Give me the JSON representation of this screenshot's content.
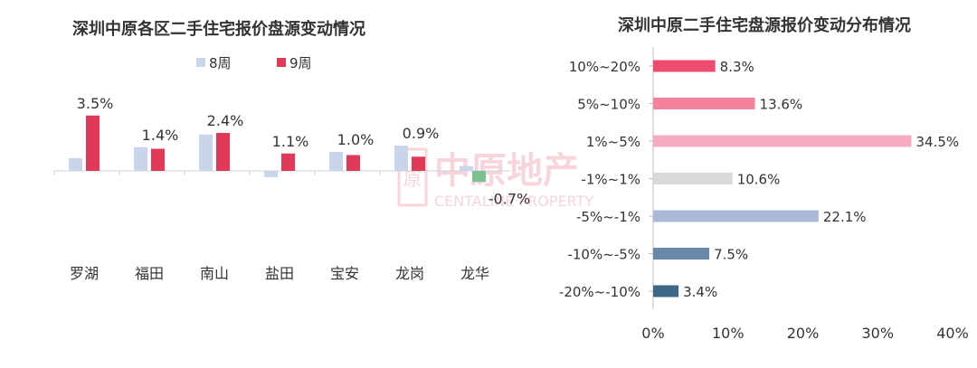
{
  "watermark": {
    "cn": "中原地产",
    "en": "CENTALINE PROPERTY",
    "seal": "原"
  },
  "chart_data": [
    {
      "type": "bar",
      "title": "深圳中原各区二手住宅报价盘源变动情况",
      "categories": [
        "罗湖",
        "福田",
        "南山",
        "盐田",
        "宝安",
        "龙岗",
        "龙华"
      ],
      "series": [
        {
          "name": "8周",
          "values": [
            0.8,
            1.5,
            2.3,
            -0.4,
            1.2,
            1.6,
            0.3
          ],
          "color": "#c9d5ea"
        },
        {
          "name": "9周",
          "values": [
            3.5,
            1.4,
            2.4,
            1.1,
            1.0,
            0.9,
            -0.7
          ],
          "color": "#e03a58"
        }
      ],
      "data_labels": [
        "3.5%",
        "1.4%",
        "2.4%",
        "1.1%",
        "1.0%",
        "0.9%",
        "-0.7%"
      ],
      "highlight_negative_color": "#7fbf91",
      "legend_position": "top",
      "grid": false
    },
    {
      "type": "bar",
      "orientation": "horizontal",
      "title": "深圳中原二手住宅盘源报价变动分布情况",
      "categories": [
        "10%~20%",
        "5%~10%",
        "1%~5%",
        "-1%~1%",
        "-5%~-1%",
        "-10%~-5%",
        "-20%~-10%"
      ],
      "values": [
        8.3,
        13.6,
        34.5,
        10.6,
        22.1,
        7.5,
        3.4
      ],
      "data_labels": [
        "8.3%",
        "13.6%",
        "34.5%",
        "10.6%",
        "22.1%",
        "7.5%",
        "3.4%"
      ],
      "colors": [
        "#ee4c6c",
        "#f4829c",
        "#f7abc0",
        "#d9d9d9",
        "#a9b9d6",
        "#6788a6",
        "#3d6687"
      ],
      "xlim": [
        0,
        40
      ],
      "xticks": [
        "0%",
        "10%",
        "20%",
        "30%",
        "40%"
      ],
      "grid": false
    }
  ]
}
